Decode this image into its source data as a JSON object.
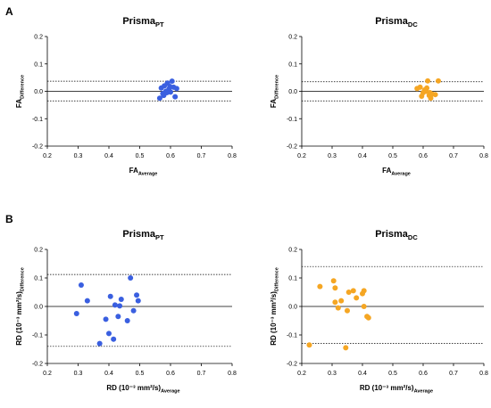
{
  "panel_labels": [
    "A",
    "B"
  ],
  "chart_data": [
    {
      "type": "scatter",
      "title": "Prisma",
      "title_sub": "PT",
      "xlabel": "FA",
      "xlabel_sub": "Average",
      "ylabel": "FA",
      "ylabel_sub": "Difference",
      "xlim": [
        0.2,
        0.8
      ],
      "ylim": [
        -0.2,
        0.2
      ],
      "xticks": [
        "0.2",
        "0.3",
        "0.4",
        "0.5",
        "0.6",
        "0.7",
        "0.8"
      ],
      "yticks": [
        "0.2",
        "0.1",
        "0.0",
        "-0.1",
        "-0.2"
      ],
      "color": "#3a5fe0",
      "mean_line": 0.0,
      "limits": [
        0.037,
        -0.035
      ],
      "points": [
        [
          0.57,
          0.012
        ],
        [
          0.575,
          -0.008
        ],
        [
          0.58,
          0.02
        ],
        [
          0.585,
          0.0
        ],
        [
          0.59,
          0.03
        ],
        [
          0.595,
          0.008
        ],
        [
          0.6,
          -0.003
        ],
        [
          0.605,
          0.037
        ],
        [
          0.61,
          0.015
        ],
        [
          0.615,
          -0.02
        ],
        [
          0.62,
          0.01
        ],
        [
          0.565,
          -0.025
        ],
        [
          0.578,
          -0.015
        ],
        [
          0.598,
          0.018
        ],
        [
          0.588,
          -0.005
        ]
      ]
    },
    {
      "type": "scatter",
      "title": "Prisma",
      "title_sub": "DC",
      "xlabel": "FA",
      "xlabel_sub": "Average",
      "ylabel": "FA",
      "ylabel_sub": "Difference",
      "xlim": [
        0.2,
        0.8
      ],
      "ylim": [
        -0.2,
        0.2
      ],
      "xticks": [
        "0.2",
        "0.3",
        "0.4",
        "0.5",
        "0.6",
        "0.7",
        "0.8"
      ],
      "yticks": [
        "0.2",
        "0.1",
        "0.0",
        "-0.1",
        "-0.2"
      ],
      "color": "#f5a623",
      "mean_line": 0.0,
      "limits": [
        0.035,
        -0.035
      ],
      "points": [
        [
          0.58,
          0.01
        ],
        [
          0.59,
          0.015
        ],
        [
          0.6,
          -0.005
        ],
        [
          0.605,
          0.005
        ],
        [
          0.61,
          0.0
        ],
        [
          0.615,
          0.038
        ],
        [
          0.62,
          -0.015
        ],
        [
          0.625,
          -0.025
        ],
        [
          0.63,
          -0.01
        ],
        [
          0.64,
          -0.012
        ],
        [
          0.65,
          0.038
        ],
        [
          0.595,
          -0.018
        ],
        [
          0.612,
          0.012
        ],
        [
          0.622,
          -0.005
        ]
      ]
    },
    {
      "type": "scatter",
      "title": "Prisma",
      "title_sub": "PT",
      "xlabel": "RD (10⁻³ mm²/s)",
      "xlabel_sub": "Average",
      "ylabel": "RD (10⁻³ mm²/s)",
      "ylabel_sub": "Difference",
      "xlim": [
        0.2,
        0.8
      ],
      "ylim": [
        -0.2,
        0.2
      ],
      "xticks": [
        "0.2",
        "0.3",
        "0.4",
        "0.5",
        "0.6",
        "0.7",
        "0.8"
      ],
      "yticks": [
        "0.2",
        "0.1",
        "0.0",
        "-0.1",
        "-0.2"
      ],
      "color": "#3a5fe0",
      "mean_line": 0.0,
      "limits": [
        0.112,
        -0.14
      ],
      "points": [
        [
          0.295,
          -0.025
        ],
        [
          0.31,
          0.075
        ],
        [
          0.33,
          0.02
        ],
        [
          0.37,
          -0.13
        ],
        [
          0.39,
          -0.045
        ],
        [
          0.4,
          -0.095
        ],
        [
          0.405,
          0.035
        ],
        [
          0.415,
          -0.115
        ],
        [
          0.42,
          0.005
        ],
        [
          0.43,
          -0.035
        ],
        [
          0.435,
          0.002
        ],
        [
          0.44,
          0.025
        ],
        [
          0.46,
          -0.05
        ],
        [
          0.47,
          0.1
        ],
        [
          0.48,
          -0.015
        ],
        [
          0.49,
          0.04
        ],
        [
          0.495,
          0.02
        ]
      ]
    },
    {
      "type": "scatter",
      "title": "Prisma",
      "title_sub": "DC",
      "xlabel": "RD (10⁻³ mm²/s)",
      "xlabel_sub": "Average",
      "ylabel": "RD (10⁻³ mm²/s)",
      "ylabel_sub": "Difference",
      "xlim": [
        0.2,
        0.8
      ],
      "ylim": [
        -0.2,
        0.2
      ],
      "xticks": [
        "0.2",
        "0.3",
        "0.4",
        "0.5",
        "0.6",
        "0.7",
        "0.8"
      ],
      "yticks": [
        "0.2",
        "0.1",
        "0.0",
        "-0.1",
        "-0.2"
      ],
      "color": "#f5a623",
      "mean_line": 0.0,
      "limits": [
        0.14,
        -0.13
      ],
      "points": [
        [
          0.225,
          -0.135
        ],
        [
          0.26,
          0.07
        ],
        [
          0.305,
          0.09
        ],
        [
          0.31,
          0.065
        ],
        [
          0.31,
          0.015
        ],
        [
          0.32,
          -0.005
        ],
        [
          0.33,
          0.02
        ],
        [
          0.345,
          -0.145
        ],
        [
          0.35,
          -0.015
        ],
        [
          0.355,
          0.05
        ],
        [
          0.37,
          0.055
        ],
        [
          0.38,
          0.03
        ],
        [
          0.4,
          0.045
        ],
        [
          0.405,
          0.055
        ],
        [
          0.405,
          0.0
        ],
        [
          0.415,
          -0.035
        ],
        [
          0.42,
          -0.04
        ]
      ]
    }
  ]
}
